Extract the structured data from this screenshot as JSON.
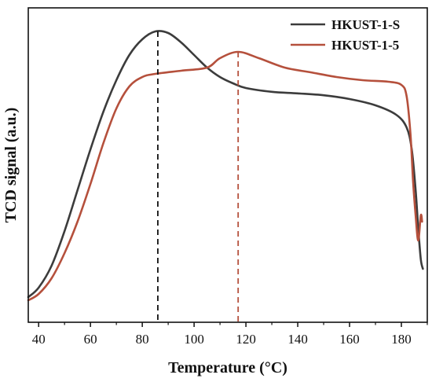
{
  "chart_data": {
    "type": "line",
    "title": "",
    "xlabel": "Temperature (°C)",
    "ylabel": "TCD signal (a.u.)",
    "xlim": [
      36,
      190
    ],
    "ylim": [
      0,
      1
    ],
    "x_ticks": [
      40,
      60,
      80,
      100,
      120,
      140,
      160,
      180
    ],
    "y_ticks_shown": false,
    "grid": false,
    "legend_position": "top-right",
    "series": [
      {
        "name": "HKUST-1-S",
        "color": "#3c3c3c",
        "points": [
          [
            36,
            0.08
          ],
          [
            40,
            0.11
          ],
          [
            45,
            0.18
          ],
          [
            50,
            0.29
          ],
          [
            55,
            0.42
          ],
          [
            60,
            0.55
          ],
          [
            65,
            0.67
          ],
          [
            70,
            0.77
          ],
          [
            75,
            0.85
          ],
          [
            80,
            0.9
          ],
          [
            85,
            0.925
          ],
          [
            90,
            0.92
          ],
          [
            95,
            0.89
          ],
          [
            100,
            0.85
          ],
          [
            105,
            0.81
          ],
          [
            110,
            0.78
          ],
          [
            115,
            0.76
          ],
          [
            120,
            0.745
          ],
          [
            130,
            0.733
          ],
          [
            140,
            0.728
          ],
          [
            150,
            0.722
          ],
          [
            160,
            0.71
          ],
          [
            170,
            0.69
          ],
          [
            178,
            0.66
          ],
          [
            182,
            0.62
          ],
          [
            184,
            0.55
          ],
          [
            185.5,
            0.42
          ],
          [
            186.5,
            0.3
          ],
          [
            187.5,
            0.2
          ],
          [
            188.3,
            0.17
          ]
        ]
      },
      {
        "name": "HKUST-1-5",
        "color": "#b5503c",
        "points": [
          [
            36,
            0.07
          ],
          [
            40,
            0.09
          ],
          [
            45,
            0.14
          ],
          [
            50,
            0.22
          ],
          [
            55,
            0.32
          ],
          [
            60,
            0.44
          ],
          [
            65,
            0.57
          ],
          [
            70,
            0.68
          ],
          [
            75,
            0.75
          ],
          [
            80,
            0.78
          ],
          [
            85,
            0.79
          ],
          [
            95,
            0.8
          ],
          [
            105,
            0.81
          ],
          [
            110,
            0.84
          ],
          [
            117,
            0.86
          ],
          [
            125,
            0.84
          ],
          [
            135,
            0.81
          ],
          [
            145,
            0.795
          ],
          [
            155,
            0.78
          ],
          [
            165,
            0.77
          ],
          [
            175,
            0.765
          ],
          [
            180,
            0.755
          ],
          [
            182,
            0.72
          ],
          [
            183.5,
            0.6
          ],
          [
            184.5,
            0.45
          ],
          [
            185.5,
            0.34
          ],
          [
            186.5,
            0.26
          ],
          [
            187.5,
            0.34
          ],
          [
            188,
            0.32
          ]
        ]
      }
    ],
    "reference_lines": [
      {
        "x": 86,
        "color": "#111111",
        "style": "dashed"
      },
      {
        "x": 117,
        "color": "#b5503c",
        "style": "dashed"
      }
    ]
  }
}
